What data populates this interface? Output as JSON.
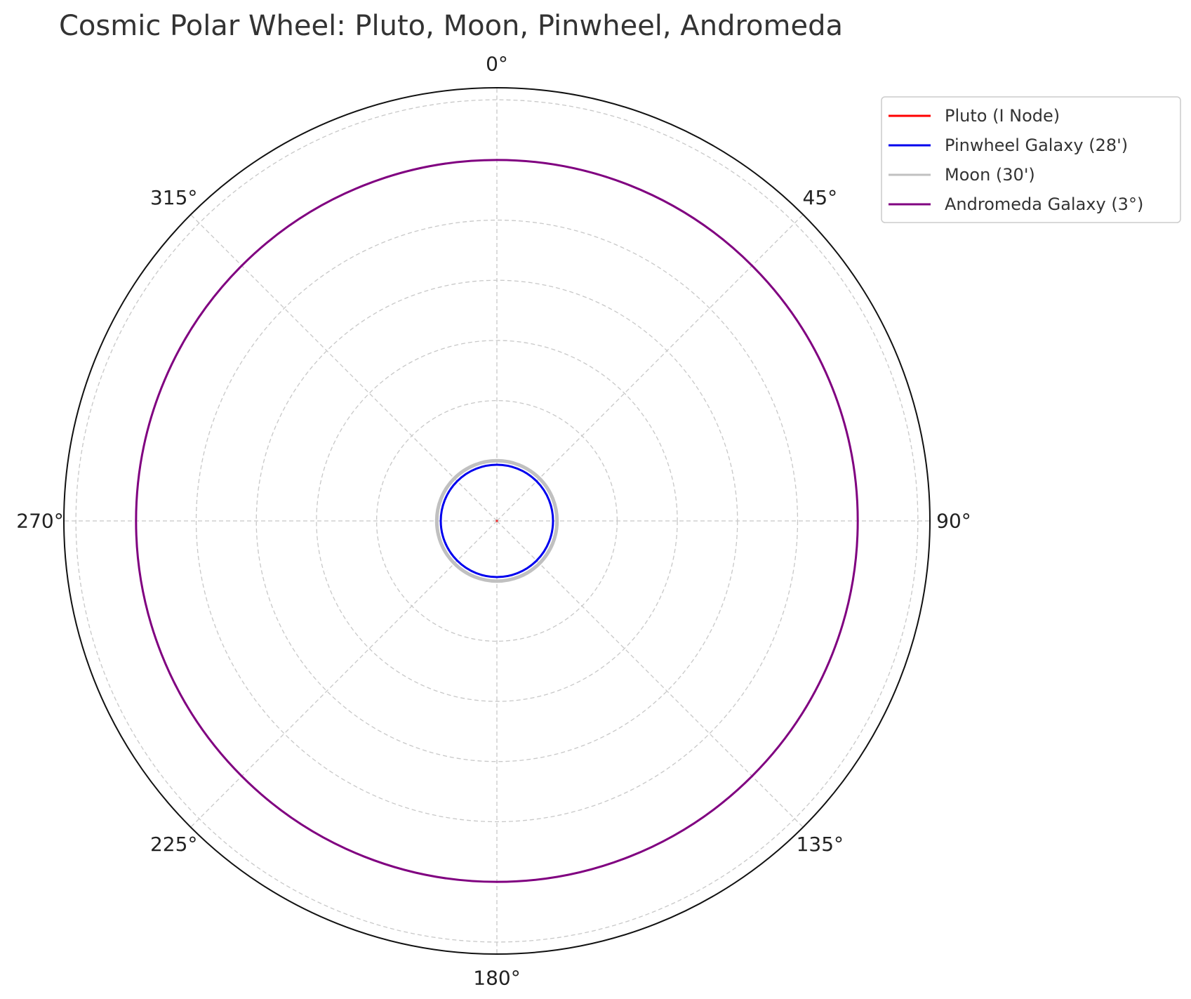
{
  "chart_data": {
    "type": "polar-line",
    "title": "Cosmic Polar Wheel: Pluto, Moon, Pinwheel, Andromeda",
    "theta_direction": "clockwise",
    "theta_zero": "top",
    "theta_ticks": [
      "0°",
      "45°",
      "90°",
      "135°",
      "180°",
      "225°",
      "270°",
      "315°"
    ],
    "theta_tick_values": [
      0,
      45,
      90,
      135,
      180,
      225,
      270,
      315
    ],
    "rlim": [
      0,
      3.6
    ],
    "r_gridlines": [
      0.5,
      1.0,
      1.5,
      2.0,
      2.5,
      3.0,
      3.5
    ],
    "grid": true,
    "legend_position": "upper-right-outside",
    "series": [
      {
        "name": "Pluto (I Node)",
        "r": 0.0,
        "color": "#ff0000"
      },
      {
        "name": "Pinwheel Galaxy (28')",
        "r": 0.4667,
        "color": "#0000ee"
      },
      {
        "name": "Moon (30')",
        "r": 0.5,
        "color": "#c0c0c0"
      },
      {
        "name": "Andromeda Galaxy (3°)",
        "r": 3.0,
        "color": "#800080"
      }
    ]
  }
}
